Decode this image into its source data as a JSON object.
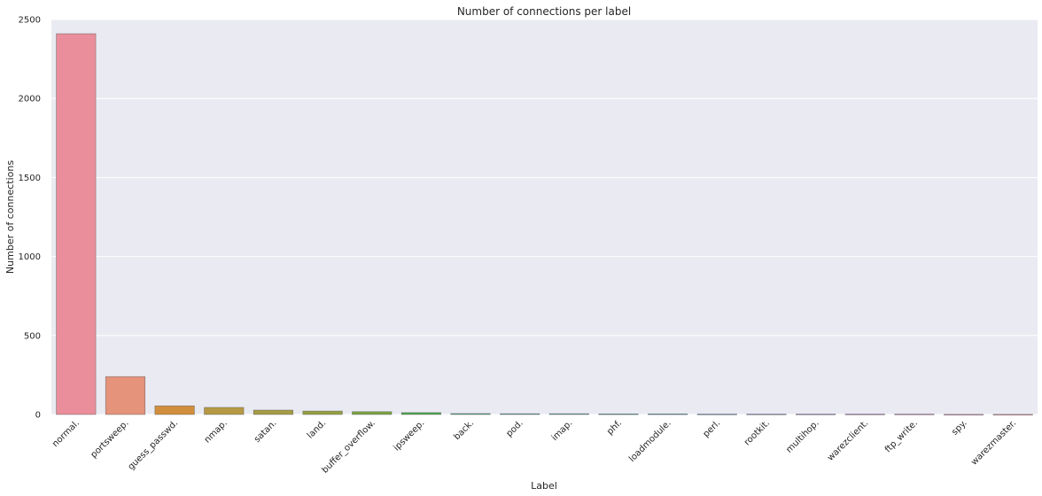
{
  "chart_data": {
    "type": "bar",
    "title": "Number of connections per label",
    "xlabel": "Label",
    "ylabel": "Number of connections",
    "ylim": [
      0,
      2500
    ],
    "yticks": [
      0,
      500,
      1000,
      1500,
      2000,
      2500
    ],
    "grid": true,
    "categories": [
      "normal.",
      "portsweep.",
      "guess_passwd.",
      "nmap.",
      "satan.",
      "land.",
      "buffer_overflow.",
      "ipsweep.",
      "back.",
      "pod.",
      "imap.",
      "phf.",
      "loadmodule.",
      "perl.",
      "rootkit.",
      "multihop.",
      "warezclient.",
      "ftp_write.",
      "spy.",
      "warezmaster."
    ],
    "values": [
      2410,
      240,
      55,
      45,
      28,
      22,
      18,
      12,
      6,
      5,
      5,
      4,
      4,
      3,
      3,
      3,
      3,
      3,
      1,
      1
    ],
    "colors": [
      "#ea8e9b",
      "#e5937a",
      "#d18e3d",
      "#b69944",
      "#a59c44",
      "#95a042",
      "#7aa342",
      "#4aaa4a",
      "#4aa87d",
      "#48a692",
      "#47a59f",
      "#48a3ad",
      "#4aa0bd",
      "#5e9bcf",
      "#8f92d9",
      "#b186dc",
      "#c77ad4",
      "#d97dc3",
      "#e180ae",
      "#e58a9a"
    ]
  }
}
